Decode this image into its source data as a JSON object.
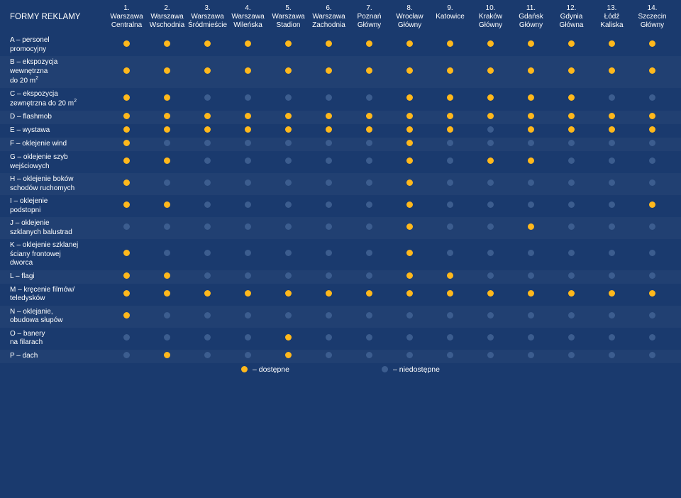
{
  "table": {
    "header_label": "FORMY REKLAMY",
    "colors": {
      "available": "#ffb81c",
      "unavailable": "#3c5d8f",
      "background": "#1a3a6e",
      "text": "#ffffff"
    },
    "columns": [
      {
        "num": "1.",
        "line1": "Warszawa",
        "line2": "Centralna"
      },
      {
        "num": "2.",
        "line1": "Warszawa",
        "line2": "Wschodnia"
      },
      {
        "num": "3.",
        "line1": "Warszawa",
        "line2": "Śródmieście"
      },
      {
        "num": "4.",
        "line1": "Warszawa",
        "line2": "Wileńska"
      },
      {
        "num": "5.",
        "line1": "Warszawa",
        "line2": "Stadion"
      },
      {
        "num": "6.",
        "line1": "Warszawa",
        "line2": "Zachodnia"
      },
      {
        "num": "7.",
        "line1": "Poznań",
        "line2": "Główny"
      },
      {
        "num": "8.",
        "line1": "Wrocław",
        "line2": "Główny"
      },
      {
        "num": "9.",
        "line1": "Katowice",
        "line2": ""
      },
      {
        "num": "10.",
        "line1": "Kraków",
        "line2": "Główny"
      },
      {
        "num": "11.",
        "line1": "Gdańsk",
        "line2": "Główny"
      },
      {
        "num": "12.",
        "line1": "Gdynia",
        "line2": "Główna"
      },
      {
        "num": "13.",
        "line1": "Łódź",
        "line2": "Kaliska"
      },
      {
        "num": "14.",
        "line1": "Szczecin",
        "line2": "Główny"
      }
    ],
    "rows": [
      {
        "label": "A – personel<br>promocyjny",
        "values": [
          1,
          1,
          1,
          1,
          1,
          1,
          1,
          1,
          1,
          1,
          1,
          1,
          1,
          1
        ]
      },
      {
        "label": "B – ekspozycja<br>wewnętrzna<br>do 20 m<sup>2</sup>",
        "values": [
          1,
          1,
          1,
          1,
          1,
          1,
          1,
          1,
          1,
          1,
          1,
          1,
          1,
          1
        ]
      },
      {
        "label": "C – ekspozycja<br>zewnętrzna do 20 m<sup>2</sup>",
        "values": [
          1,
          1,
          0,
          0,
          0,
          0,
          0,
          1,
          1,
          1,
          1,
          1,
          0,
          0
        ]
      },
      {
        "label": "D – flashmob",
        "values": [
          1,
          1,
          1,
          1,
          1,
          1,
          1,
          1,
          1,
          1,
          1,
          1,
          1,
          1
        ]
      },
      {
        "label": "E – wystawa",
        "values": [
          1,
          1,
          1,
          1,
          1,
          1,
          1,
          1,
          1,
          0,
          1,
          1,
          1,
          1
        ]
      },
      {
        "label": "F – oklejenie wind",
        "values": [
          1,
          0,
          0,
          0,
          0,
          0,
          0,
          1,
          0,
          0,
          0,
          0,
          0,
          0
        ]
      },
      {
        "label": "G – oklejenie szyb<br>wejściowych",
        "values": [
          1,
          1,
          0,
          0,
          0,
          0,
          0,
          1,
          0,
          1,
          1,
          0,
          0,
          0
        ]
      },
      {
        "label": "H – oklejenie boków<br>schodów ruchomych",
        "values": [
          1,
          0,
          0,
          0,
          0,
          0,
          0,
          1,
          0,
          0,
          0,
          0,
          0,
          0
        ]
      },
      {
        "label": "I – oklejenie<br>podstopni",
        "values": [
          1,
          1,
          0,
          0,
          0,
          0,
          0,
          1,
          0,
          0,
          0,
          0,
          0,
          1
        ]
      },
      {
        "label": "J – oklejenie<br>szklanych balustrad",
        "values": [
          0,
          0,
          0,
          0,
          0,
          0,
          0,
          1,
          0,
          0,
          1,
          0,
          0,
          0
        ]
      },
      {
        "label": "K – oklejenie szklanej<br>ściany frontowej<br>dworca",
        "values": [
          1,
          0,
          0,
          0,
          0,
          0,
          0,
          1,
          0,
          0,
          0,
          0,
          0,
          0
        ]
      },
      {
        "label": "L – flagi",
        "values": [
          1,
          1,
          0,
          0,
          0,
          0,
          0,
          1,
          1,
          0,
          0,
          0,
          0,
          0
        ]
      },
      {
        "label": "M – kręcenie filmów/<br>teledysków",
        "values": [
          1,
          1,
          1,
          1,
          1,
          1,
          1,
          1,
          1,
          1,
          1,
          1,
          1,
          1
        ]
      },
      {
        "label": "N – oklejanie,<br>obudowa słupów",
        "values": [
          1,
          0,
          0,
          0,
          0,
          0,
          0,
          0,
          0,
          0,
          0,
          0,
          0,
          0
        ]
      },
      {
        "label": "O – banery<br>na filarach",
        "values": [
          0,
          0,
          0,
          0,
          1,
          0,
          0,
          0,
          0,
          0,
          0,
          0,
          0,
          0
        ]
      },
      {
        "label": "P – dach",
        "values": [
          0,
          1,
          0,
          0,
          1,
          0,
          0,
          0,
          0,
          0,
          0,
          0,
          0,
          0
        ]
      }
    ],
    "legend": {
      "available": "– dostępne",
      "unavailable": "– niedostępne"
    }
  }
}
